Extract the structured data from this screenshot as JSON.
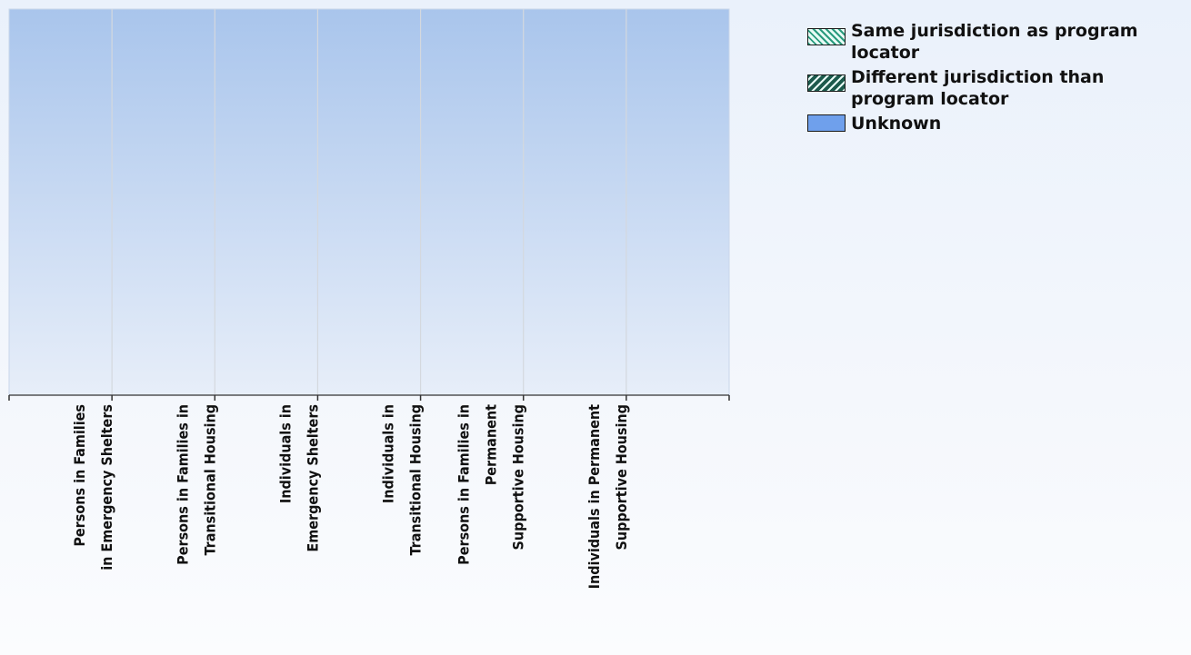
{
  "chart_data": {
    "type": "bar",
    "title": "",
    "xlabel": "",
    "ylabel": "",
    "categories": [
      [
        "Persons in Families",
        "in Emergency Shelters"
      ],
      [
        "Persons in Families in",
        "Transitional Housing"
      ],
      [
        "Individuals in",
        "Emergency Shelters"
      ],
      [
        "Individuals in",
        "Transitional Housing"
      ],
      [
        "Persons in Families in",
        "Permanent",
        "Supportive Housing"
      ],
      [
        "Individuals in Permanent",
        "Supportive Housing"
      ]
    ],
    "series": [
      {
        "name": "Same jurisdiction as program locator",
        "values": [
          0,
          0,
          0,
          0,
          0,
          0
        ]
      },
      {
        "name": "Different jurisdiction than program locator",
        "values": [
          0,
          0,
          0,
          0,
          0,
          0
        ]
      },
      {
        "name": "Unknown",
        "values": [
          0,
          0,
          0,
          0,
          0,
          0
        ]
      }
    ],
    "grid": true,
    "legend_position": "top-right",
    "colors": {
      "plot_top": "#a9c5ec",
      "plot_bottom": "#e7eef9",
      "same": "#2a9b7e",
      "different": "#1c5a4c",
      "unknown": "#6fa0ec"
    }
  },
  "legend": {
    "items": [
      {
        "label_lines": [
          "Same jurisdiction as program",
          "locator"
        ],
        "swatch": "same"
      },
      {
        "label_lines": [
          "Different jurisdiction than",
          "program locator"
        ],
        "swatch": "different"
      },
      {
        "label_lines": [
          "Unknown"
        ],
        "swatch": "unknown"
      }
    ]
  }
}
